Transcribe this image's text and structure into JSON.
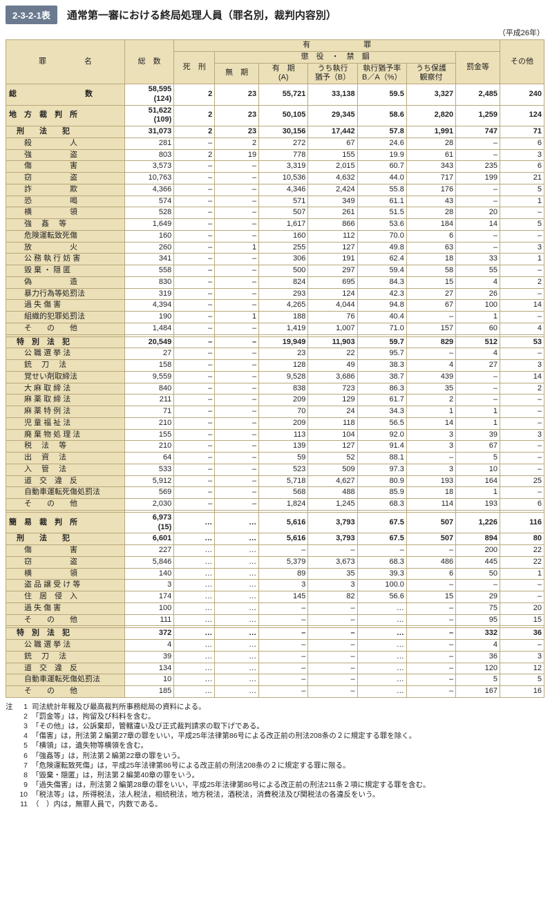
{
  "header": {
    "tag": "2-3-2-1表",
    "title": "通常第一審における終局処理人員（罪名別，裁判内容別）",
    "year": "（平成26年）"
  },
  "columns": {
    "name": "罪　　　　　名",
    "total": "総　数",
    "guilty": "有　　　　　　　罪",
    "prison": "懲　役　・　禁　錮",
    "death": "死　刑",
    "muki": "無　期",
    "yuuki": "有　期\n(A)",
    "susp": "うち執行\n猶予（B）",
    "rate": "執行猶予率\nB／A（%）",
    "hogo": "うち保護\n観察付",
    "fine": "罰金等",
    "other": "その他"
  },
  "rows": [
    {
      "cls": "bold",
      "name": "総　　　　　　　　　数",
      "v": [
        "58,595\n(124)",
        "2",
        "23",
        "55,721",
        "33,138",
        "59.5",
        "3,327",
        "2,485",
        "240"
      ]
    },
    {
      "cls": "bold",
      "name": "地　方　裁　判　所",
      "v": [
        "51,622\n(109)",
        "2",
        "23",
        "50,105",
        "29,345",
        "58.6",
        "2,820",
        "1,259",
        "124"
      ]
    },
    {
      "cls": "section",
      "name": "　刑　　法　　犯",
      "v": [
        "31,073",
        "2",
        "23",
        "30,156",
        "17,442",
        "57.8",
        "1,991",
        "747",
        "71"
      ]
    },
    {
      "cls": "",
      "name": "　　殺　　　　　人",
      "v": [
        "281",
        "–",
        "2",
        "272",
        "67",
        "24.6",
        "28",
        "–",
        "6"
      ]
    },
    {
      "cls": "",
      "name": "　　強　　　　　盗",
      "v": [
        "803",
        "2",
        "19",
        "778",
        "155",
        "19.9",
        "61",
        "–",
        "3"
      ]
    },
    {
      "cls": "",
      "name": "　　傷　　　　　害",
      "v": [
        "3,573",
        "–",
        "–",
        "3,319",
        "2,015",
        "60.7",
        "343",
        "235",
        "6"
      ]
    },
    {
      "cls": "",
      "name": "　　窃　　　　　盗",
      "v": [
        "10,763",
        "–",
        "–",
        "10,536",
        "4,632",
        "44.0",
        "717",
        "199",
        "21"
      ]
    },
    {
      "cls": "",
      "name": "　　詐　　　　　欺",
      "v": [
        "4,366",
        "–",
        "–",
        "4,346",
        "2,424",
        "55.8",
        "176",
        "–",
        "5"
      ]
    },
    {
      "cls": "",
      "name": "　　恐　　　　　喝",
      "v": [
        "574",
        "–",
        "–",
        "571",
        "349",
        "61.1",
        "43",
        "–",
        "1"
      ]
    },
    {
      "cls": "",
      "name": "　　横　　　　　領",
      "v": [
        "528",
        "–",
        "–",
        "507",
        "261",
        "51.5",
        "28",
        "20",
        "–"
      ]
    },
    {
      "cls": "",
      "name": "　　強　 姦　 等",
      "v": [
        "1,649",
        "–",
        "–",
        "1,617",
        "866",
        "53.6",
        "184",
        "14",
        "5"
      ]
    },
    {
      "cls": "",
      "name": "　　危険運転致死傷",
      "v": [
        "160",
        "–",
        "–",
        "160",
        "112",
        "70.0",
        "6",
        "–",
        "–"
      ]
    },
    {
      "cls": "",
      "name": "　　放　　　　　火",
      "v": [
        "260",
        "–",
        "1",
        "255",
        "127",
        "49.8",
        "63",
        "–",
        "3"
      ]
    },
    {
      "cls": "",
      "name": "　　公 務 執 行 妨 害",
      "v": [
        "341",
        "–",
        "–",
        "306",
        "191",
        "62.4",
        "18",
        "33",
        "1"
      ]
    },
    {
      "cls": "",
      "name": "　　毀 棄 ・ 隠 匿",
      "v": [
        "558",
        "–",
        "–",
        "500",
        "297",
        "59.4",
        "58",
        "55",
        "–"
      ]
    },
    {
      "cls": "",
      "name": "　　偽　　　　　造",
      "v": [
        "830",
        "–",
        "–",
        "824",
        "695",
        "84.3",
        "15",
        "4",
        "2"
      ]
    },
    {
      "cls": "",
      "name": "　　暴力行為等処罰法",
      "v": [
        "319",
        "–",
        "–",
        "293",
        "124",
        "42.3",
        "27",
        "26",
        "–"
      ]
    },
    {
      "cls": "",
      "name": "　　過 失 傷 害",
      "v": [
        "4,394",
        "–",
        "–",
        "4,265",
        "4,044",
        "94.8",
        "67",
        "100",
        "14"
      ]
    },
    {
      "cls": "",
      "name": "　　組織的犯罪処罰法",
      "v": [
        "190",
        "–",
        "1",
        "188",
        "76",
        "40.4",
        "–",
        "1",
        "–"
      ]
    },
    {
      "cls": "",
      "name": "　　そ　　の　　他",
      "v": [
        "1,484",
        "–",
        "–",
        "1,419",
        "1,007",
        "71.0",
        "157",
        "60",
        "4"
      ]
    },
    {
      "cls": "spacer",
      "name": "",
      "v": [
        "",
        "",
        "",
        "",
        "",
        "",
        "",
        "",
        ""
      ]
    },
    {
      "cls": "section",
      "name": "　特　別　法　犯",
      "v": [
        "20,549",
        "–",
        "–",
        "19,949",
        "11,903",
        "59.7",
        "829",
        "512",
        "53"
      ]
    },
    {
      "cls": "",
      "name": "　　公 職 選 挙 法",
      "v": [
        "27",
        "–",
        "–",
        "23",
        "22",
        "95.7",
        "–",
        "4",
        "–"
      ]
    },
    {
      "cls": "",
      "name": "　　銃　 刀　 法",
      "v": [
        "158",
        "–",
        "–",
        "128",
        "49",
        "38.3",
        "4",
        "27",
        "3"
      ]
    },
    {
      "cls": "",
      "name": "　　覚せい剤取締法",
      "v": [
        "9,559",
        "–",
        "–",
        "9,528",
        "3,686",
        "38.7",
        "439",
        "–",
        "14"
      ]
    },
    {
      "cls": "",
      "name": "　　大 麻 取 締 法",
      "v": [
        "840",
        "–",
        "–",
        "838",
        "723",
        "86.3",
        "35",
        "–",
        "2"
      ]
    },
    {
      "cls": "",
      "name": "　　麻 薬 取 締 法",
      "v": [
        "211",
        "–",
        "–",
        "209",
        "129",
        "61.7",
        "2",
        "–",
        "–"
      ]
    },
    {
      "cls": "",
      "name": "　　麻 薬 特 例 法",
      "v": [
        "71",
        "–",
        "–",
        "70",
        "24",
        "34.3",
        "1",
        "1",
        "–"
      ]
    },
    {
      "cls": "",
      "name": "　　児 童 福 祉 法",
      "v": [
        "210",
        "–",
        "–",
        "209",
        "118",
        "56.5",
        "14",
        "1",
        "–"
      ]
    },
    {
      "cls": "",
      "name": "　　廃 棄 物 処 理 法",
      "v": [
        "155",
        "–",
        "–",
        "113",
        "104",
        "92.0",
        "3",
        "39",
        "3"
      ]
    },
    {
      "cls": "",
      "name": "　　税　 法　 等",
      "v": [
        "210",
        "–",
        "–",
        "139",
        "127",
        "91.4",
        "3",
        "67",
        "–"
      ]
    },
    {
      "cls": "",
      "name": "　　出　 資　 法",
      "v": [
        "64",
        "–",
        "–",
        "59",
        "52",
        "88.1",
        "–",
        "5",
        "–"
      ]
    },
    {
      "cls": "",
      "name": "　　入　 管　 法",
      "v": [
        "533",
        "–",
        "–",
        "523",
        "509",
        "97.3",
        "3",
        "10",
        "–"
      ]
    },
    {
      "cls": "",
      "name": "　　道　交　違　反",
      "v": [
        "5,912",
        "–",
        "–",
        "5,718",
        "4,627",
        "80.9",
        "193",
        "164",
        "25"
      ]
    },
    {
      "cls": "",
      "name": "　　自動車運転死傷処罰法",
      "v": [
        "569",
        "–",
        "–",
        "568",
        "488",
        "85.9",
        "18",
        "1",
        "–"
      ]
    },
    {
      "cls": "",
      "name": "　　そ　　の　　他",
      "v": [
        "2,030",
        "–",
        "–",
        "1,824",
        "1,245",
        "68.3",
        "114",
        "193",
        "6"
      ]
    },
    {
      "cls": "spacer",
      "name": "",
      "v": [
        "",
        "",
        "",
        "",
        "",
        "",
        "",
        "",
        ""
      ]
    },
    {
      "cls": "bold",
      "name": "簡　易　裁　判　所",
      "v": [
        "6,973\n(15)",
        "…",
        "…",
        "5,616",
        "3,793",
        "67.5",
        "507",
        "1,226",
        "116"
      ]
    },
    {
      "cls": "section",
      "name": "　刑　　法　　犯",
      "v": [
        "6,601",
        "…",
        "…",
        "5,616",
        "3,793",
        "67.5",
        "507",
        "894",
        "80"
      ]
    },
    {
      "cls": "",
      "name": "　　傷　　　　　害",
      "v": [
        "227",
        "…",
        "…",
        "–",
        "–",
        "–",
        "–",
        "200",
        "22"
      ]
    },
    {
      "cls": "",
      "name": "　　窃　　　　　盗",
      "v": [
        "5,846",
        "…",
        "…",
        "5,379",
        "3,673",
        "68.3",
        "486",
        "445",
        "22"
      ]
    },
    {
      "cls": "",
      "name": "　　横　　　　　領",
      "v": [
        "140",
        "…",
        "…",
        "89",
        "35",
        "39.3",
        "6",
        "50",
        "1"
      ]
    },
    {
      "cls": "",
      "name": "　　盗 品 譲 受 け 等",
      "v": [
        "3",
        "…",
        "…",
        "3",
        "3",
        "100.0",
        "–",
        "–",
        "–"
      ]
    },
    {
      "cls": "",
      "name": "　　住　居　侵　入",
      "v": [
        "174",
        "…",
        "…",
        "145",
        "82",
        "56.6",
        "15",
        "29",
        "–"
      ]
    },
    {
      "cls": "",
      "name": "　　過 失 傷 害",
      "v": [
        "100",
        "…",
        "…",
        "–",
        "–",
        "…",
        "–",
        "75",
        "20"
      ]
    },
    {
      "cls": "",
      "name": "　　そ　　の　　他",
      "v": [
        "111",
        "…",
        "…",
        "–",
        "–",
        "…",
        "–",
        "95",
        "15"
      ]
    },
    {
      "cls": "spacer",
      "name": "",
      "v": [
        "",
        "",
        "",
        "",
        "",
        "",
        "",
        "",
        ""
      ]
    },
    {
      "cls": "section",
      "name": "　特　別　法　犯",
      "v": [
        "372",
        "…",
        "…",
        "–",
        "–",
        "…",
        "–",
        "332",
        "36"
      ]
    },
    {
      "cls": "",
      "name": "　　公 職 選 挙 法",
      "v": [
        "4",
        "…",
        "…",
        "–",
        "–",
        "…",
        "–",
        "4",
        "–"
      ]
    },
    {
      "cls": "",
      "name": "　　銃　 刀　 法",
      "v": [
        "39",
        "…",
        "…",
        "–",
        "–",
        "…",
        "–",
        "36",
        "3"
      ]
    },
    {
      "cls": "",
      "name": "　　道　交　違　反",
      "v": [
        "134",
        "…",
        "…",
        "–",
        "–",
        "…",
        "–",
        "120",
        "12"
      ]
    },
    {
      "cls": "",
      "name": "　　自動車運転死傷処罰法",
      "v": [
        "10",
        "…",
        "…",
        "–",
        "–",
        "…",
        "–",
        "5",
        "5"
      ]
    },
    {
      "cls": "",
      "name": "　　そ　　の　　他",
      "v": [
        "185",
        "…",
        "…",
        "–",
        "–",
        "…",
        "–",
        "167",
        "16"
      ]
    }
  ],
  "notes": [
    "司法統計年報及び最高裁判所事務総局の資料による。",
    "「罰金等」は，拘留及び科料を含む。",
    "「その他」は，公訴棄却，管轄違い及び正式裁判請求の取下げである。",
    "「傷害」は，刑法第２編第27章の罪をいい，平成25年法律第86号による改正前の刑法208条の２に規定する罪を除く。",
    "「横領」は，遺失物等横領を含む。",
    "「強姦等」は，刑法第２編第22章の罪をいう。",
    "「危険運転致死傷」は，平成25年法律第86号による改正前の刑法208条の２に規定する罪に限る。",
    "「毀棄・隠匿」は，刑法第２編第40章の罪をいう。",
    "「過失傷害」は，刑法第２編第28章の罪をいい，平成25年法律第86号による改正前の刑法211条２項に規定する罪を含む。",
    "「税法等」は，所得税法，法人税法，相続税法，地方税法，酒税法，消費税法及び関税法の各違反をいう。",
    "（　）内は，無罪人員で，内数である。"
  ]
}
